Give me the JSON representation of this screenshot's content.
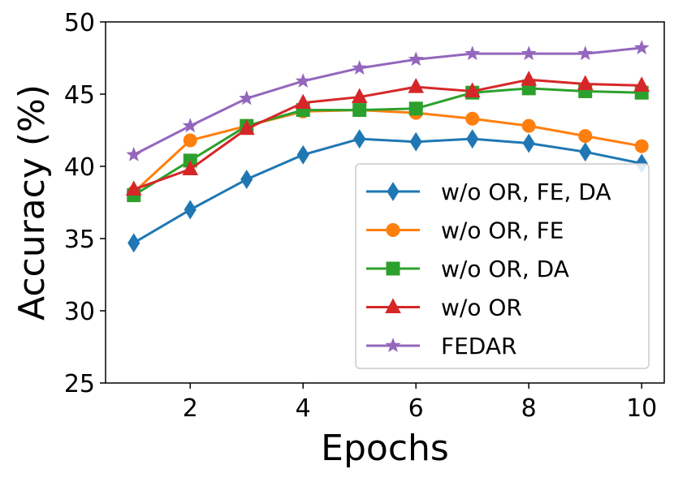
{
  "chart_data": {
    "type": "line",
    "xlabel": "Epochs",
    "ylabel": "Accuracy (%)",
    "x": [
      1,
      2,
      3,
      4,
      5,
      6,
      7,
      8,
      9,
      10
    ],
    "xlim": [
      0.5,
      10.4
    ],
    "ylim": [
      25,
      50
    ],
    "xticks": [
      2,
      4,
      6,
      8,
      10
    ],
    "yticks": [
      25,
      30,
      35,
      40,
      45,
      50
    ],
    "grid": false,
    "legend_position": "center-right",
    "series": [
      {
        "name": "w/o OR, FE, DA",
        "color": "#1f77b4",
        "marker": "diamond",
        "values": [
          34.7,
          37.0,
          39.1,
          40.8,
          41.9,
          41.7,
          41.9,
          41.6,
          41.0,
          40.2
        ]
      },
      {
        "name": "w/o OR, FE",
        "color": "#ff7f0e",
        "marker": "circle",
        "values": [
          38.2,
          41.8,
          42.8,
          43.8,
          43.9,
          43.7,
          43.3,
          42.8,
          42.1,
          41.4
        ]
      },
      {
        "name": "w/o OR, DA",
        "color": "#2ca02c",
        "marker": "square",
        "values": [
          38.0,
          40.4,
          42.8,
          43.9,
          43.9,
          44.0,
          45.1,
          45.4,
          45.2,
          45.1
        ]
      },
      {
        "name": "w/o OR",
        "color": "#d62728",
        "marker": "triangle",
        "values": [
          38.4,
          39.8,
          42.6,
          44.4,
          44.8,
          45.5,
          45.2,
          46.0,
          45.7,
          45.6
        ]
      },
      {
        "name": "FEDAR",
        "color": "#9467bd",
        "marker": "star",
        "values": [
          40.8,
          42.8,
          44.7,
          45.9,
          46.8,
          47.4,
          47.8,
          47.8,
          47.8,
          48.2
        ]
      }
    ]
  }
}
